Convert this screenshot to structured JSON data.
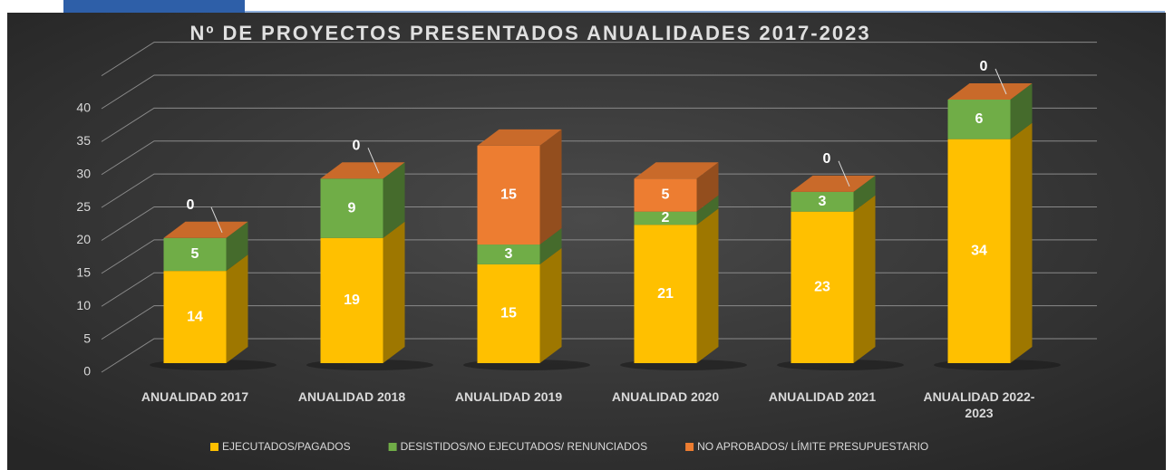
{
  "chart_data": {
    "type": "bar3d_stacked",
    "title": "Nº DE PROYECTOS PRESENTADOS ANUALIDADES 2017-2023",
    "categories": [
      "ANUALIDAD 2017",
      "ANUALIDAD 2018",
      "ANUALIDAD 2019",
      "ANUALIDAD 2020",
      "ANUALIDAD 2021",
      "ANUALIDAD 2022-2023"
    ],
    "series": [
      {
        "name": "EJECUTADOS/PAGADOS",
        "color": "#ffc000",
        "values": [
          14,
          19,
          15,
          21,
          23,
          34
        ]
      },
      {
        "name": "DESISTIDOS/NO EJECUTADOS/ RENUNCIADOS",
        "color": "#70ad47",
        "values": [
          5,
          9,
          3,
          2,
          3,
          6
        ]
      },
      {
        "name": "NO APROBADOS/ LÍMITE PRESUPUESTARIO",
        "color": "#ed7d31",
        "values": [
          0,
          0,
          15,
          5,
          0,
          0
        ]
      }
    ],
    "ylim": [
      0,
      45
    ],
    "yticks": [
      0,
      5,
      10,
      15,
      20,
      25,
      30,
      35,
      40
    ],
    "grid": true,
    "legend": "bottom"
  }
}
